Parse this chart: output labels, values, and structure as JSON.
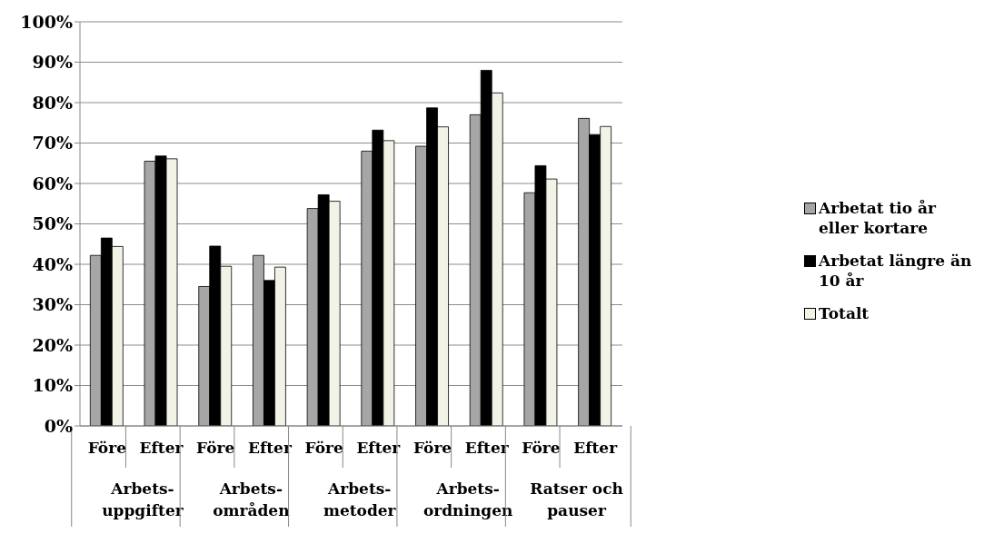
{
  "chart_data": {
    "type": "bar",
    "categories": [
      "Före",
      "Efter",
      "Före",
      "Efter",
      "Före",
      "Efter",
      "Före",
      "Efter",
      "Före",
      "Efter"
    ],
    "series": [
      {
        "name": "Arbetat tio år eller kortare",
        "color": "#a6a6a6",
        "values": [
          42.2,
          65.5,
          34.5,
          42.2,
          53.8,
          68,
          69.2,
          77,
          57.7,
          76.1
        ]
      },
      {
        "name": "Arbetat längre än 10 år",
        "color": "#000000",
        "values": [
          46.5,
          66.8,
          44.5,
          36,
          57.2,
          73.2,
          78.7,
          88,
          64.4,
          72.1
        ]
      },
      {
        "name": "Totalt",
        "color": "#f2f2e6",
        "values": [
          44.4,
          66.1,
          39.5,
          39.3,
          55.6,
          70.6,
          74,
          82.4,
          61.1,
          74.1
        ]
      }
    ],
    "annotations": [
      "Arbets-\nuppgifter",
      "Arbets-\nområden",
      "Arbets-\nmetoder",
      "Arbets-\nordningen",
      "Ratser och\npauser"
    ],
    "ylim": [
      0,
      100
    ],
    "yticks": [
      {
        "value": 0,
        "label": "0%"
      },
      {
        "value": 10,
        "label": "10%"
      },
      {
        "value": 20,
        "label": "20%"
      },
      {
        "value": 30,
        "label": "30%"
      },
      {
        "value": 40,
        "label": "40%"
      },
      {
        "value": 50,
        "label": "50%"
      },
      {
        "value": 60,
        "label": "60%"
      },
      {
        "value": 70,
        "label": "70%"
      },
      {
        "value": 80,
        "label": "80%"
      },
      {
        "value": 90,
        "label": "90%"
      },
      {
        "value": 100,
        "label": "100%"
      }
    ],
    "grid": "y",
    "legend": "right"
  }
}
